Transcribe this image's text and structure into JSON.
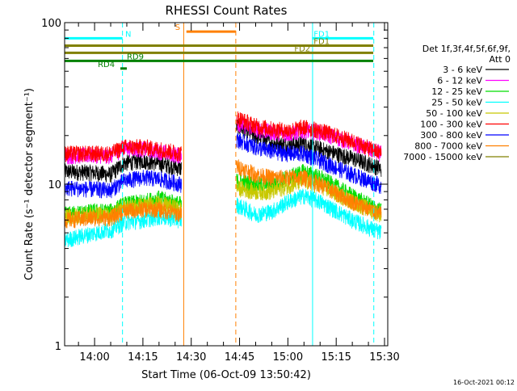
{
  "chart_data": {
    "type": "line",
    "title": "RHESSI Count Rates",
    "xlabel": "Start Time (06-Oct-09 13:50:42)",
    "ylabel": "Count Rate (s⁻¹ detector segment⁻¹)",
    "yscale": "log",
    "ylim": [
      1,
      100
    ],
    "xlim": [
      "13:50:42",
      "15:31:00"
    ],
    "x_ticks": [
      "14:00",
      "14:15",
      "14:30",
      "14:45",
      "15:00",
      "15:15",
      "15:30"
    ],
    "y_ticks": [
      "1",
      "10",
      "100"
    ],
    "grid": false,
    "legend_position": "right",
    "legend_header": [
      "Det 1f,3f,4f,5f,6f,9f,",
      "Att 0"
    ],
    "footer_date": "16-Oct-2021 00:12",
    "data_gap": [
      "14:27",
      "14:44"
    ],
    "series": [
      {
        "name": "3 - 6 keV",
        "color": "#000000",
        "values": [
          {
            "x": "13:50:42",
            "y": 12.0
          },
          {
            "x": "14:00",
            "y": 11.8
          },
          {
            "x": "14:05",
            "y": 11.5
          },
          {
            "x": "14:09",
            "y": 13.5
          },
          {
            "x": "14:15",
            "y": 14.0
          },
          {
            "x": "14:20",
            "y": 13.5
          },
          {
            "x": "14:27",
            "y": 12.5
          },
          {
            "x": "14:44",
            "y": 23.0
          },
          {
            "x": "14:50",
            "y": 20.0
          },
          {
            "x": "14:55",
            "y": 18.0
          },
          {
            "x": "15:00",
            "y": 17.5
          },
          {
            "x": "15:05",
            "y": 18.0
          },
          {
            "x": "15:10",
            "y": 16.5
          },
          {
            "x": "15:20",
            "y": 14.5
          },
          {
            "x": "15:29",
            "y": 12.5
          }
        ]
      },
      {
        "name": "6 - 12 keV",
        "color": "#ff00ff",
        "values": [
          {
            "x": "13:50:42",
            "y": 15.0
          },
          {
            "x": "14:00",
            "y": 15.2
          },
          {
            "x": "14:05",
            "y": 15.0
          },
          {
            "x": "14:09",
            "y": 16.8
          },
          {
            "x": "14:15",
            "y": 16.5
          },
          {
            "x": "14:20",
            "y": 16.0
          },
          {
            "x": "14:27",
            "y": 15.0
          },
          {
            "x": "14:44",
            "y": 24.0
          },
          {
            "x": "14:50",
            "y": 22.0
          },
          {
            "x": "14:55",
            "y": 21.0
          },
          {
            "x": "15:00",
            "y": 20.5
          },
          {
            "x": "15:05",
            "y": 21.5
          },
          {
            "x": "15:10",
            "y": 21.0
          },
          {
            "x": "15:20",
            "y": 18.0
          },
          {
            "x": "15:29",
            "y": 15.5
          }
        ]
      },
      {
        "name": "12 - 25 keV",
        "color": "#00dd00",
        "values": [
          {
            "x": "13:50:42",
            "y": 6.5
          },
          {
            "x": "14:00",
            "y": 6.8
          },
          {
            "x": "14:05",
            "y": 6.8
          },
          {
            "x": "14:09",
            "y": 7.5
          },
          {
            "x": "14:15",
            "y": 7.8
          },
          {
            "x": "14:20",
            "y": 8.2
          },
          {
            "x": "14:27",
            "y": 7.5
          },
          {
            "x": "14:44",
            "y": 10.5
          },
          {
            "x": "14:50",
            "y": 10.0
          },
          {
            "x": "14:55",
            "y": 10.0
          },
          {
            "x": "15:00",
            "y": 11.0
          },
          {
            "x": "15:05",
            "y": 12.0
          },
          {
            "x": "15:10",
            "y": 11.0
          },
          {
            "x": "15:20",
            "y": 8.5
          },
          {
            "x": "15:29",
            "y": 6.8
          }
        ]
      },
      {
        "name": "25 - 50 keV",
        "color": "#00ffff",
        "values": [
          {
            "x": "13:50:42",
            "y": 4.5
          },
          {
            "x": "14:00",
            "y": 5.0
          },
          {
            "x": "14:05",
            "y": 5.2
          },
          {
            "x": "14:09",
            "y": 5.8
          },
          {
            "x": "14:15",
            "y": 6.0
          },
          {
            "x": "14:20",
            "y": 6.3
          },
          {
            "x": "14:27",
            "y": 6.0
          },
          {
            "x": "14:44",
            "y": 7.5
          },
          {
            "x": "14:50",
            "y": 6.5
          },
          {
            "x": "14:55",
            "y": 6.8
          },
          {
            "x": "15:00",
            "y": 7.8
          },
          {
            "x": "15:05",
            "y": 8.5
          },
          {
            "x": "15:10",
            "y": 7.8
          },
          {
            "x": "15:20",
            "y": 6.0
          },
          {
            "x": "15:29",
            "y": 5.0
          }
        ]
      },
      {
        "name": "50 - 100 keV",
        "color": "#c8c800",
        "values": [
          {
            "x": "13:50:42",
            "y": 6.3
          },
          {
            "x": "14:00",
            "y": 6.5
          },
          {
            "x": "14:05",
            "y": 6.5
          },
          {
            "x": "14:09",
            "y": 7.2
          },
          {
            "x": "14:15",
            "y": 7.4
          },
          {
            "x": "14:20",
            "y": 7.6
          },
          {
            "x": "14:27",
            "y": 7.0
          },
          {
            "x": "14:44",
            "y": 9.5
          },
          {
            "x": "14:50",
            "y": 9.0
          },
          {
            "x": "14:55",
            "y": 9.0
          },
          {
            "x": "15:00",
            "y": 9.8
          },
          {
            "x": "15:05",
            "y": 10.5
          },
          {
            "x": "15:10",
            "y": 9.8
          },
          {
            "x": "15:20",
            "y": 7.8
          },
          {
            "x": "15:29",
            "y": 6.5
          }
        ]
      },
      {
        "name": "100 - 300 keV",
        "color": "#ff0000",
        "values": [
          {
            "x": "13:50:42",
            "y": 15.5
          },
          {
            "x": "14:00",
            "y": 15.5
          },
          {
            "x": "14:05",
            "y": 15.5
          },
          {
            "x": "14:09",
            "y": 17.0
          },
          {
            "x": "14:15",
            "y": 17.0
          },
          {
            "x": "14:20",
            "y": 16.5
          },
          {
            "x": "14:27",
            "y": 15.5
          },
          {
            "x": "14:44",
            "y": 26.0
          },
          {
            "x": "14:50",
            "y": 23.0
          },
          {
            "x": "14:55",
            "y": 22.0
          },
          {
            "x": "15:00",
            "y": 21.5
          },
          {
            "x": "15:05",
            "y": 22.5
          },
          {
            "x": "15:10",
            "y": 21.5
          },
          {
            "x": "15:20",
            "y": 18.5
          },
          {
            "x": "15:29",
            "y": 15.5
          }
        ]
      },
      {
        "name": "300 - 800 keV",
        "color": "#0000ff",
        "values": [
          {
            "x": "13:50:42",
            "y": 9.5
          },
          {
            "x": "14:00",
            "y": 9.3
          },
          {
            "x": "14:05",
            "y": 9.2
          },
          {
            "x": "14:09",
            "y": 10.5
          },
          {
            "x": "14:15",
            "y": 11.0
          },
          {
            "x": "14:20",
            "y": 10.8
          },
          {
            "x": "14:27",
            "y": 10.0
          },
          {
            "x": "14:44",
            "y": 19.0
          },
          {
            "x": "14:50",
            "y": 17.0
          },
          {
            "x": "14:55",
            "y": 16.0
          },
          {
            "x": "15:00",
            "y": 15.5
          },
          {
            "x": "15:05",
            "y": 15.5
          },
          {
            "x": "15:10",
            "y": 14.0
          },
          {
            "x": "15:20",
            "y": 11.5
          },
          {
            "x": "15:29",
            "y": 9.8
          }
        ]
      },
      {
        "name": "800 - 7000 keV",
        "color": "#ff8000",
        "values": [
          {
            "x": "13:50:42",
            "y": 6.0
          },
          {
            "x": "14:00",
            "y": 6.2
          },
          {
            "x": "14:05",
            "y": 6.2
          },
          {
            "x": "14:09",
            "y": 6.8
          },
          {
            "x": "14:15",
            "y": 7.0
          },
          {
            "x": "14:20",
            "y": 7.0
          },
          {
            "x": "14:27",
            "y": 6.5
          },
          {
            "x": "14:44",
            "y": 13.0
          },
          {
            "x": "14:50",
            "y": 11.5
          },
          {
            "x": "14:55",
            "y": 11.0
          },
          {
            "x": "15:00",
            "y": 11.0
          },
          {
            "x": "15:05",
            "y": 11.0
          },
          {
            "x": "15:10",
            "y": 10.0
          },
          {
            "x": "15:20",
            "y": 7.8
          },
          {
            "x": "15:29",
            "y": 6.5
          }
        ]
      },
      {
        "name": "7000 - 15000 keV",
        "color": "#808000",
        "values": []
      }
    ],
    "annotation_segments": [
      {
        "label": "N",
        "color": "#00ffff",
        "y": 80,
        "x_start": "13:50:42",
        "x_end": "14:08:40",
        "label_at": "14:09:30"
      },
      {
        "label": "S",
        "color": "#ff8000",
        "y": 88,
        "x_start": "14:28:30",
        "x_end": "14:43:50",
        "label_at": "14:25:00"
      },
      {
        "label": "FD1",
        "color": "#00ffff",
        "y": 80,
        "x_start": "15:07:30",
        "x_end": "15:26:30",
        "label_at": "15:08:00"
      },
      {
        "label": "FD1",
        "color": "#808000",
        "y": 72,
        "x_start": "13:50:42",
        "x_end": "15:26:30",
        "label_at": "15:08:00"
      },
      {
        "label": "FD2",
        "color": "#808000",
        "y": 65,
        "x_start": "13:50:42",
        "x_end": "15:26:30",
        "label_at": "15:02:00"
      },
      {
        "label": "RD9",
        "color": "#008000",
        "y": 58,
        "x_start": "13:50:42",
        "x_end": "15:26:30",
        "label_at": "14:10:00"
      },
      {
        "label": "RD4",
        "color": "#008000",
        "y": 52,
        "x_start": "14:08:00",
        "x_end": "14:10:00",
        "label_at": "14:01:00"
      }
    ],
    "vertical_markers": [
      {
        "x": "13:50:42",
        "color": "#00ffff",
        "style": "solid"
      },
      {
        "x": "14:08:40",
        "color": "#00ffff",
        "style": "dashed"
      },
      {
        "x": "14:27:40",
        "color": "#ff8000",
        "style": "solid"
      },
      {
        "x": "14:43:50",
        "color": "#ff8000",
        "style": "dashed"
      },
      {
        "x": "15:07:40",
        "color": "#00ffff",
        "style": "solid"
      },
      {
        "x": "15:26:40",
        "color": "#00ffff",
        "style": "dashed"
      }
    ]
  }
}
